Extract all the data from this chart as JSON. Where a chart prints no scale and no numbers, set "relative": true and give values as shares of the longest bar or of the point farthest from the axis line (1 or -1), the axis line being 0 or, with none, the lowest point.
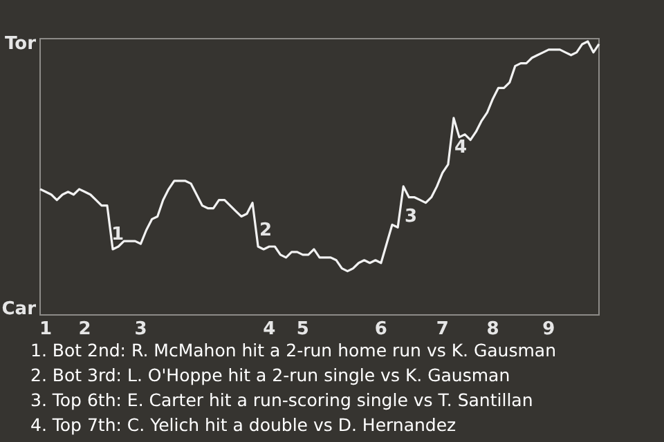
{
  "chart_data": {
    "type": "line",
    "relative": true,
    "categories": [
      null,
      "1",
      null,
      null,
      null,
      null,
      null,
      null,
      "2",
      null,
      null,
      null,
      null,
      null,
      null,
      null,
      null,
      null,
      "3",
      null,
      null,
      null,
      null,
      null,
      null,
      null,
      null,
      null,
      null,
      null,
      null,
      null,
      null,
      null,
      null,
      null,
      null,
      null,
      null,
      null,
      null,
      "4",
      null,
      null,
      null,
      null,
      null,
      "5",
      null,
      null,
      null,
      null,
      null,
      null,
      null,
      null,
      null,
      null,
      null,
      null,
      null,
      "6",
      null,
      null,
      null,
      null,
      null,
      null,
      null,
      null,
      null,
      null,
      "7",
      null,
      null,
      null,
      null,
      null,
      null,
      null,
      null,
      "8",
      null,
      null,
      null,
      null,
      null,
      null,
      null,
      null,
      null,
      "9",
      null,
      null,
      null,
      null,
      null,
      null,
      null,
      null,
      null
    ],
    "series": [
      {
        "color": "#f2f2f2",
        "values": [
          0.46,
          0.45,
          0.44,
          0.42,
          0.44,
          0.45,
          0.44,
          0.46,
          0.45,
          0.44,
          0.42,
          0.4,
          0.4,
          0.24,
          0.25,
          0.27,
          0.27,
          0.27,
          0.26,
          0.31,
          0.35,
          0.36,
          0.42,
          0.46,
          0.49,
          0.49,
          0.49,
          0.48,
          0.44,
          0.4,
          0.39,
          0.39,
          0.42,
          0.42,
          0.4,
          0.38,
          0.36,
          0.37,
          0.41,
          0.25,
          0.24,
          0.25,
          0.25,
          0.22,
          0.21,
          0.23,
          0.23,
          0.22,
          0.22,
          0.24,
          0.21,
          0.21,
          0.21,
          0.2,
          0.17,
          0.16,
          0.17,
          0.19,
          0.2,
          0.19,
          0.2,
          0.19,
          0.26,
          0.33,
          0.32,
          0.47,
          0.43,
          0.43,
          0.42,
          0.41,
          0.43,
          0.47,
          0.52,
          0.55,
          0.72,
          0.65,
          0.66,
          0.64,
          0.67,
          0.71,
          0.74,
          0.79,
          0.83,
          0.83,
          0.85,
          0.91,
          0.92,
          0.92,
          0.94,
          0.95,
          0.96,
          0.97,
          0.97,
          0.97,
          0.96,
          0.95,
          0.96,
          0.99,
          1,
          0.96,
          0.99
        ]
      }
    ],
    "marker": "none",
    "line_style": "solid",
    "annotations": [
      "Tor",
      "Car",
      "1",
      "2",
      "3",
      "4",
      "1. Bot 2nd: R. McMahon hit a 2-run home run vs K. Gausman",
      "2. Bot 3rd: L. O'Hoppe hit a 2-run single vs K. Gausman",
      "3. Top 6th: E. Carter hit a run-scoring single vs T. Santillan",
      "4. Top 7th: C. Yelich hit a double vs D. Hernandez"
    ]
  }
}
